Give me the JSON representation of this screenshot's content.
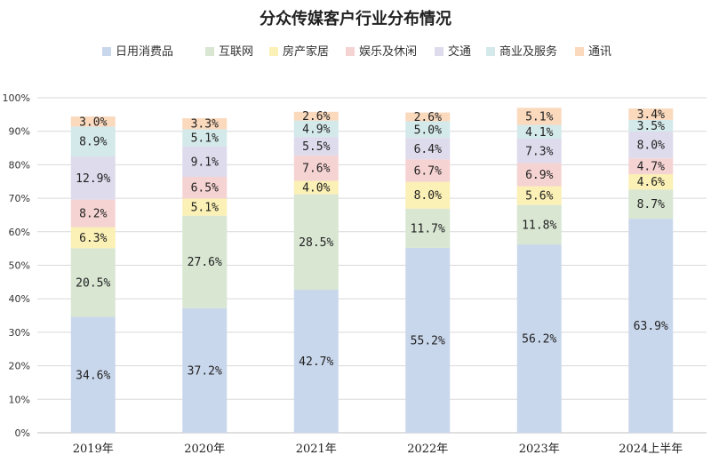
{
  "chart_data": {
    "type": "bar",
    "stacked": true,
    "title": "分众传媒客户行业分布情况",
    "categories": [
      "2019年",
      "2020年",
      "2021年",
      "2022年",
      "2023年",
      "2024上半年"
    ],
    "ylim": [
      0,
      100
    ],
    "yticks": [
      "0%",
      "10%",
      "20%",
      "30%",
      "40%",
      "50%",
      "60%",
      "70%",
      "80%",
      "90%",
      "100%"
    ],
    "grid": true,
    "legend_position": "top",
    "series": [
      {
        "name": "日用消费品",
        "color": "#c9d7ec",
        "values": [
          34.6,
          37.2,
          42.7,
          55.2,
          56.2,
          63.9
        ],
        "labels": [
          "34.6%",
          "37.2%",
          "42.7%",
          "55.2%",
          "56.2%",
          "63.9%"
        ]
      },
      {
        "name": "互联网",
        "color": "#d8e6d2",
        "values": [
          20.5,
          27.6,
          28.5,
          11.7,
          11.8,
          8.7
        ],
        "labels": [
          "20.5%",
          "27.6%",
          "28.5%",
          "11.7%",
          "11.8%",
          "8.7%"
        ]
      },
      {
        "name": "房产家居",
        "color": "#fbf0b5",
        "values": [
          6.3,
          5.1,
          4.0,
          8.0,
          5.6,
          4.6
        ],
        "labels": [
          "6.3%",
          "5.1%",
          "4.0%",
          "8.0%",
          "5.6%",
          "4.6%"
        ]
      },
      {
        "name": "娱乐及休闲",
        "color": "#f6d3d3",
        "values": [
          8.2,
          6.5,
          7.6,
          6.7,
          6.9,
          4.7
        ],
        "labels": [
          "8.2%",
          "6.5%",
          "7.6%",
          "6.7%",
          "6.9%",
          "4.7%"
        ]
      },
      {
        "name": "交通",
        "color": "#dedbec",
        "values": [
          12.9,
          9.1,
          5.5,
          6.4,
          7.3,
          8.0
        ],
        "labels": [
          "12.9%",
          "9.1%",
          "5.5%",
          "6.4%",
          "7.3%",
          "8.0%"
        ]
      },
      {
        "name": "商业及服务",
        "color": "#d4e9ea",
        "values": [
          8.9,
          5.1,
          4.9,
          5.0,
          4.1,
          3.5
        ],
        "labels": [
          "8.9%",
          "5.1%",
          "4.9%",
          "5.0%",
          "4.1%",
          "3.5%"
        ]
      },
      {
        "name": "通讯",
        "color": "#fad9bd",
        "values": [
          3.0,
          3.3,
          2.6,
          2.6,
          5.1,
          3.4
        ],
        "labels": [
          "3.0%",
          "3.3%",
          "2.6%",
          "2.6%",
          "5.1%",
          "3.4%"
        ]
      }
    ]
  }
}
